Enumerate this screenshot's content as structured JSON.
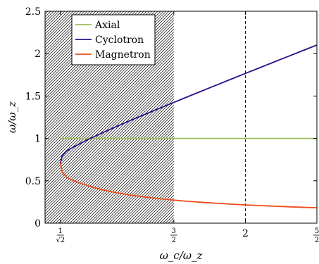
{
  "chart_data": {
    "type": "line",
    "title": "",
    "xlabel": "ω_c/ω_z",
    "ylabel": "ω/ω_z",
    "xlim": [
      0.6,
      2.5
    ],
    "ylim": [
      0,
      2.5
    ],
    "grid": false,
    "legend_position": "top-left",
    "x_ticks": [
      {
        "value": 0.7071,
        "num": "1",
        "den": "√2"
      },
      {
        "value": 1.5,
        "num": "3",
        "den": "2"
      },
      {
        "value": 2,
        "label": "2"
      },
      {
        "value": 2.5,
        "num": "5",
        "den": "2"
      }
    ],
    "y_ticks": [
      {
        "value": 0,
        "label": "0"
      },
      {
        "value": 0.5,
        "label": "0.5"
      },
      {
        "value": 1,
        "label": "1"
      },
      {
        "value": 1.5,
        "label": "1.5"
      },
      {
        "value": 2,
        "label": "2"
      },
      {
        "value": 2.5,
        "label": "2.5"
      }
    ],
    "hatched_region": {
      "x_from": 0.6,
      "x_to": 1.5
    },
    "vertical_dashed_line": {
      "x": 2
    },
    "series": [
      {
        "name": "Axial",
        "color": "#9bbb59",
        "x": [
          0.7071,
          2.5
        ],
        "y": [
          1,
          1
        ]
      },
      {
        "name": "Cyclotron",
        "color": "#2e0f8a",
        "x": [
          0.7071,
          0.72,
          0.75,
          0.8,
          0.9,
          1.0,
          1.1,
          1.2,
          1.3,
          1.4,
          1.5,
          1.6,
          1.7,
          1.8,
          1.9,
          2.0,
          2.1,
          2.2,
          2.3,
          2.4,
          2.5
        ],
        "y": [
          0.7071,
          0.7961,
          0.8515,
          0.9,
          0.9865,
          1.0657,
          1.1409,
          1.2138,
          1.2852,
          1.3555,
          1.425,
          1.494,
          1.5625,
          1.6307,
          1.6986,
          1.7662,
          1.8336,
          1.9008,
          1.9679,
          2.0348,
          2.1016
        ]
      },
      {
        "name": "Magnetron",
        "color": "#f04a1a",
        "x": [
          0.7071,
          0.72,
          0.75,
          0.8,
          0.9,
          1.0,
          1.1,
          1.2,
          1.3,
          1.4,
          1.5,
          1.6,
          1.7,
          1.8,
          1.9,
          2.0,
          2.1,
          2.2,
          2.3,
          2.4,
          2.5
        ],
        "y": [
          0.7071,
          0.6039,
          0.5423,
          0.5,
          0.4405,
          0.3943,
          0.3591,
          0.3311,
          0.308,
          0.2886,
          0.2721,
          0.2578,
          0.2454,
          0.2344,
          0.2245,
          0.2156,
          0.2076,
          0.2002,
          0.1935,
          0.1873,
          0.1816
        ]
      }
    ]
  }
}
